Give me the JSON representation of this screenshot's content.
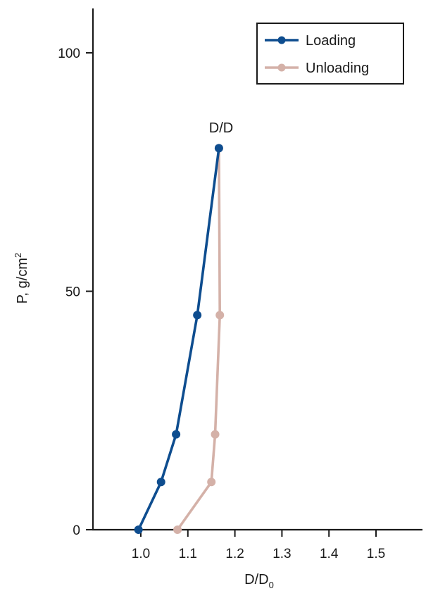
{
  "chart_data": {
    "type": "line",
    "ylabel": "P, g/cm",
    "ylabel_superscript": "2",
    "xlabel": "D/D",
    "xlabel_subscript": "0",
    "xlim": [
      0.93,
      1.6
    ],
    "ylim": [
      0,
      110
    ],
    "x_ticks": [
      1.0,
      1.1,
      1.2,
      1.3,
      1.4,
      1.5
    ],
    "x_tick_labels": [
      "1.0",
      "1.1",
      "1.2",
      "1.3",
      "1.4",
      "1.5"
    ],
    "y_ticks": [
      0,
      50,
      100
    ],
    "y_tick_labels": [
      "0",
      "50",
      "100"
    ],
    "grid": false,
    "legend_position": "top-right",
    "annotation": {
      "text": "D/D",
      "x": 1.166,
      "y": 80
    },
    "series": [
      {
        "name": "Loading",
        "color": "#0e4d8f",
        "points": [
          [
            0.995,
            0
          ],
          [
            1.043,
            10
          ],
          [
            1.075,
            20
          ],
          [
            1.12,
            45
          ],
          [
            1.166,
            80
          ]
        ]
      },
      {
        "name": "Unloading",
        "color": "#d4b1a8",
        "points": [
          [
            1.166,
            80
          ],
          [
            1.168,
            45
          ],
          [
            1.158,
            20
          ],
          [
            1.15,
            10
          ],
          [
            1.078,
            0
          ]
        ]
      }
    ]
  }
}
